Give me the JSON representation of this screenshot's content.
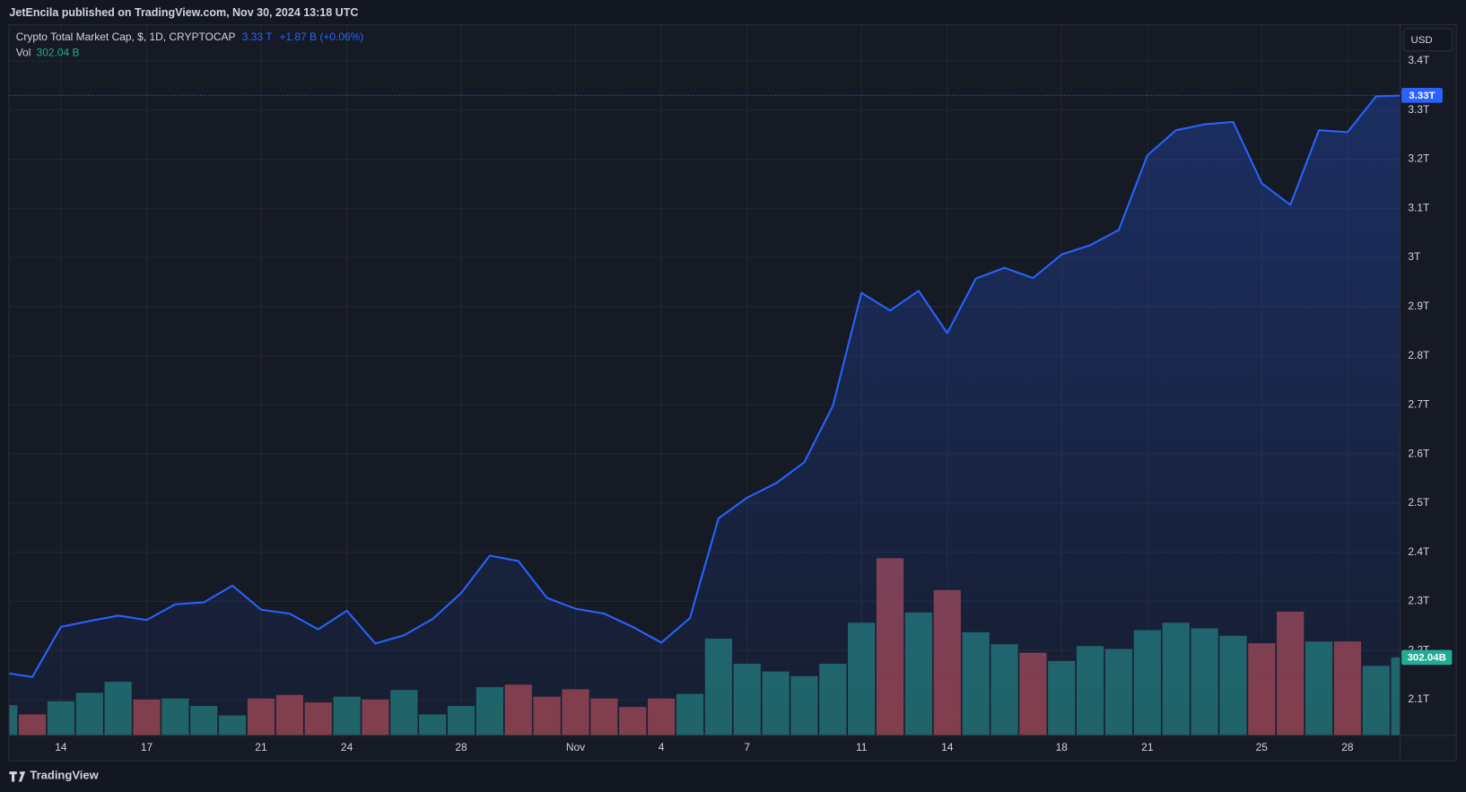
{
  "header": {
    "published": "JetEncila published on TradingView.com, Nov 30, 2024 13:18 UTC",
    "price": "3.33 T",
    "change": "+1.87 B (+0.06%)",
    "vol": "302.04 B",
    "currency": "USD",
    "brand": "TradingView"
  },
  "chart_data": {
    "type": "line",
    "categories": [
      null,
      null,
      "14",
      null,
      null,
      "17",
      null,
      null,
      null,
      "21",
      null,
      null,
      "24",
      null,
      null,
      null,
      "28",
      null,
      null,
      null,
      "Nov",
      null,
      null,
      "4",
      null,
      null,
      "7",
      null,
      null,
      null,
      "11",
      null,
      null,
      "14",
      null,
      null,
      null,
      "18",
      null,
      null,
      "21",
      null,
      null,
      null,
      "25",
      null,
      null,
      "28",
      null,
      null
    ],
    "series": [
      {
        "name": "Crypto Total Market Cap, $, 1D, CRYPTOCAP",
        "color": "#2962ff",
        "last_label": "3.33T",
        "values": [
          2.155,
          2.146,
          2.248,
          2.26,
          2.271,
          2.262,
          2.294,
          2.298,
          2.332,
          2.283,
          2.275,
          2.243,
          2.281,
          2.214,
          2.231,
          2.264,
          2.317,
          2.393,
          2.382,
          2.307,
          2.285,
          2.275,
          2.248,
          2.216,
          2.266,
          2.469,
          2.511,
          2.54,
          2.583,
          2.698,
          2.928,
          2.892,
          2.932,
          2.846,
          2.957,
          2.979,
          2.958,
          3.006,
          3.025,
          3.056,
          3.208,
          3.259,
          3.271,
          3.276,
          3.151,
          3.107,
          3.259,
          3.255,
          3.328,
          3.33
        ]
      },
      {
        "name": "Vol",
        "type": "bar",
        "axis": "y2",
        "color": "#22ab94",
        "last_label": "302.04B",
        "values": [
          116,
          80,
          131,
          164,
          207,
          138,
          142,
          113,
          76,
          142,
          156,
          127,
          149,
          138,
          175,
          80,
          113,
          186,
          196,
          149,
          178,
          142,
          109,
          142,
          160,
          375,
          277,
          247,
          229,
          277,
          437,
          688,
          477,
          564,
          400,
          353,
          320,
          288,
          346,
          335,
          408,
          437,
          415,
          386,
          357,
          480,
          364,
          364,
          269,
          302.04
        ],
        "colors": [
          "#1f6461",
          "#863c43",
          "#1f6461",
          "#1f6461",
          "#1f6461",
          "#863c43",
          "#1f6461",
          "#1f6461",
          "#1f6461",
          "#863c43",
          "#863c43",
          "#863c43",
          "#1f6461",
          "#863c43",
          "#1f6461",
          "#1f6461",
          "#1f6461",
          "#1f6461",
          "#863c43",
          "#863c43",
          "#863c43",
          "#863c43",
          "#863c43",
          "#863c43",
          "#1f6461",
          "#1f6461",
          "#1f6461",
          "#1f6461",
          "#1f6461",
          "#1f6461",
          "#1f6461",
          "#863c43",
          "#1f6461",
          "#863c43",
          "#1f6461",
          "#1f6461",
          "#863c43",
          "#1f6461",
          "#1f6461",
          "#1f6461",
          "#1f6461",
          "#1f6461",
          "#1f6461",
          "#1f6461",
          "#863c43",
          "#863c43",
          "#1f6461",
          "#863c43",
          "#1f6461",
          "#1f6461"
        ]
      }
    ],
    "ylim": [
      2.028,
      3.467
    ],
    "yticks": [
      {
        "value": 2.1,
        "label": "2.1T"
      },
      {
        "value": 2.2,
        "label": "2.2T"
      },
      {
        "value": 2.3,
        "label": "2.3T"
      },
      {
        "value": 2.4,
        "label": "2.4T"
      },
      {
        "value": 2.5,
        "label": "2.5T"
      },
      {
        "value": 2.6,
        "label": "2.6T"
      },
      {
        "value": 2.7,
        "label": "2.7T"
      },
      {
        "value": 2.8,
        "label": "2.8T"
      },
      {
        "value": 2.9,
        "label": "2.9T"
      },
      {
        "value": 3,
        "label": "3T"
      },
      {
        "value": 3.1,
        "label": "3.1T"
      },
      {
        "value": 3.2,
        "label": "3.2T"
      },
      {
        "value": 3.3,
        "label": "3.3T"
      },
      {
        "value": 3.4,
        "label": "3.4T"
      }
    ],
    "y2lim": [
      0,
      2752
    ],
    "grid": true
  }
}
